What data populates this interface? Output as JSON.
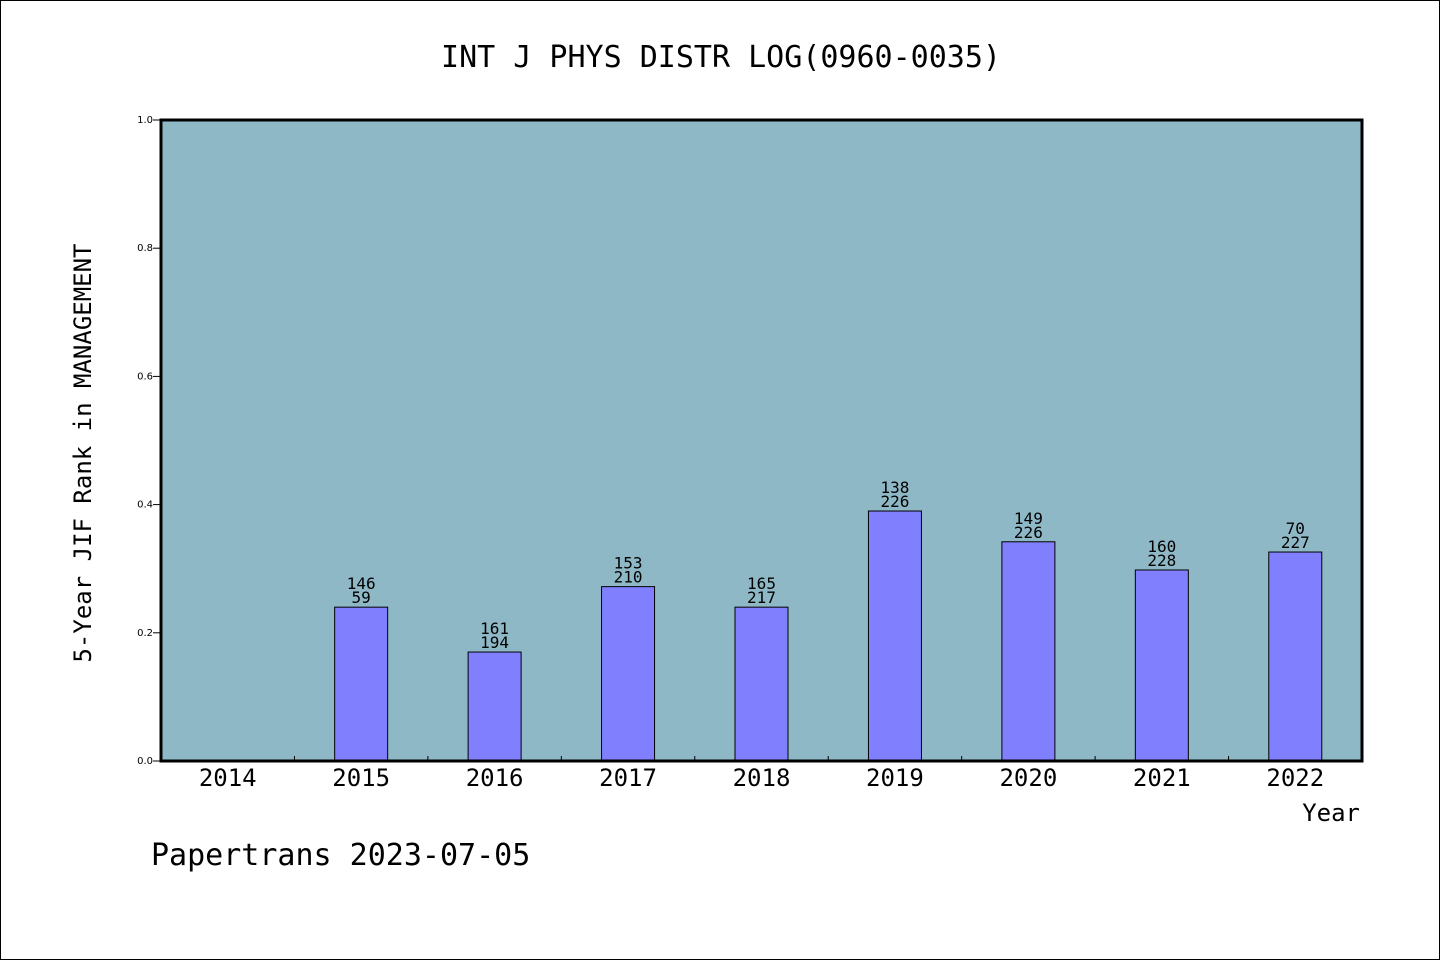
{
  "chart_data": {
    "type": "bar",
    "title": "INT J PHYS DISTR LOG(0960-0035)",
    "xlabel": "Year",
    "ylabel": "5-Year JIF Rank in MANAGEMENT",
    "ylim": [
      0,
      1.0
    ],
    "yticks": [
      "0.0",
      "0.2",
      "0.4",
      "0.6",
      "0.8",
      "1.0"
    ],
    "grid": false,
    "categories": [
      "2014",
      "2015",
      "2016",
      "2017",
      "2018",
      "2019",
      "2020",
      "2021",
      "2022"
    ],
    "values": [
      null,
      0.24,
      0.17,
      0.272,
      0.24,
      0.39,
      0.342,
      0.298,
      0.326
    ],
    "labels_top": [
      "",
      "146",
      "161",
      "153",
      "165",
      "138",
      "149",
      "160",
      "70"
    ],
    "labels_bottom": [
      "",
      "59",
      "194",
      "210",
      "217",
      "226",
      "226",
      "228",
      "227"
    ],
    "colors": {
      "plot_bg": "#8fb8c6",
      "bar": "#8080ff"
    }
  },
  "footer": "Papertrans 2023-07-05"
}
